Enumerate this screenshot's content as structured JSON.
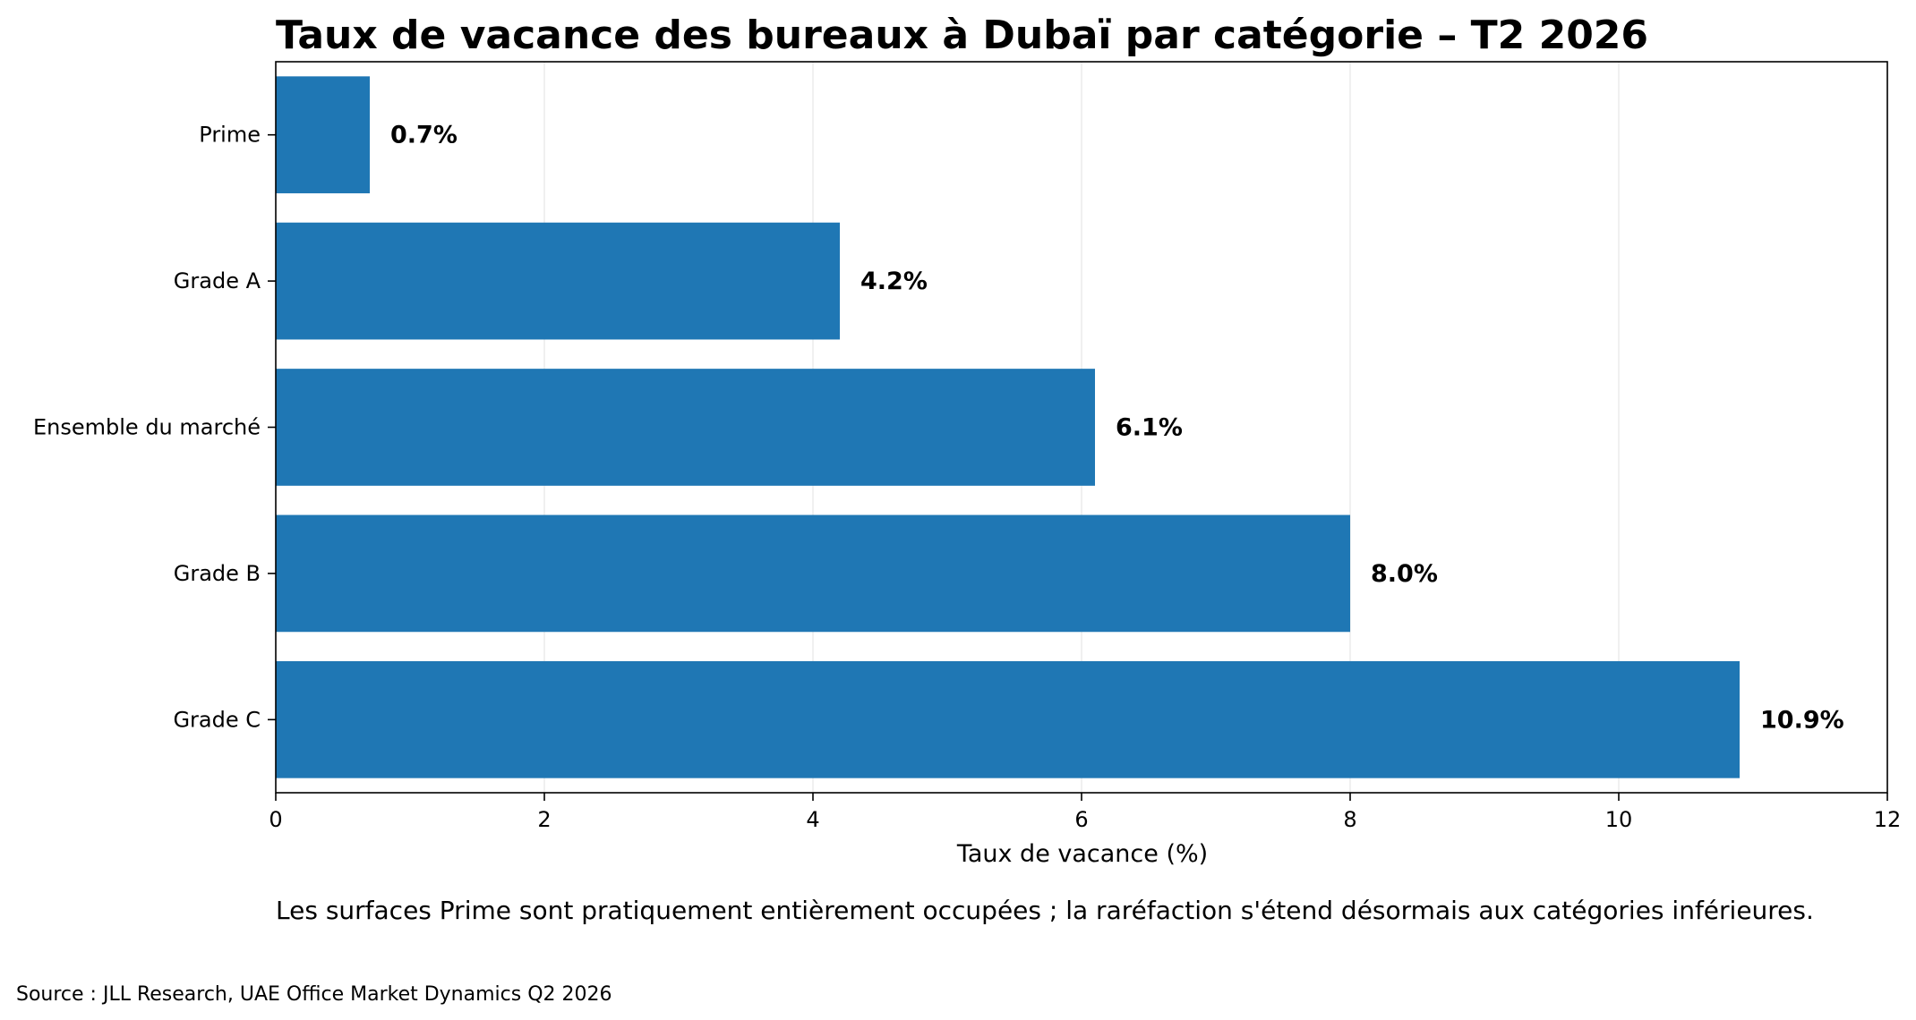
{
  "chart_data": {
    "type": "bar",
    "orientation": "horizontal",
    "title": "Taux de vacance des bureaux à Dubaï par catégorie – T2 2026",
    "categories": [
      "Prime",
      "Grade A",
      "Ensemble du marché",
      "Grade B",
      "Grade C"
    ],
    "values": [
      0.7,
      4.2,
      6.1,
      8.0,
      10.9
    ],
    "value_labels": [
      "0.7%",
      "4.2%",
      "6.1%",
      "8.0%",
      "10.9%"
    ],
    "xlabel": "Taux de vacance (%)",
    "ylabel": "",
    "xlim": [
      0,
      12
    ],
    "xticks": [
      0,
      2,
      4,
      6,
      8,
      10,
      12
    ],
    "grid": "vertical",
    "legend": "none",
    "bar_color": "#1f77b4",
    "annotation": "Les surfaces Prime sont pratiquement entièrement occupées ; la raréfaction s'étend désormais aux catégories inférieures.",
    "source": "Source : JLL Research, UAE Office Market Dynamics Q2 2026"
  }
}
